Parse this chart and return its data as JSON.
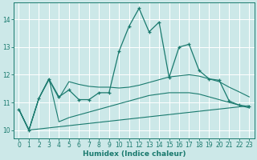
{
  "xlabel": "Humidex (Indice chaleur)",
  "bg_color": "#cce8e8",
  "grid_color": "#ffffff",
  "line_color": "#1a7a6e",
  "xlim": [
    -0.5,
    23.5
  ],
  "ylim": [
    9.7,
    14.6
  ],
  "xticks": [
    0,
    1,
    2,
    3,
    4,
    5,
    6,
    7,
    8,
    9,
    10,
    11,
    12,
    13,
    14,
    15,
    16,
    17,
    18,
    19,
    20,
    21,
    22,
    23
  ],
  "yticks": [
    10,
    11,
    12,
    13,
    14
  ],
  "curve1_x": [
    0,
    1,
    2,
    3,
    4,
    5,
    6,
    7,
    8,
    9,
    10,
    11,
    12,
    13,
    14,
    15,
    16,
    17,
    18,
    19,
    20,
    21,
    22,
    23
  ],
  "curve1_y": [
    10.75,
    10.0,
    11.15,
    11.85,
    11.2,
    11.45,
    11.1,
    11.1,
    11.35,
    11.35,
    12.85,
    13.75,
    14.4,
    13.55,
    13.9,
    11.9,
    13.0,
    13.1,
    12.15,
    11.85,
    11.8,
    11.05,
    10.9,
    10.85
  ],
  "curve2_x": [
    0,
    1,
    2,
    3,
    4,
    5,
    6,
    7,
    8,
    9,
    10,
    11,
    12,
    13,
    14,
    15,
    16,
    17,
    18,
    19,
    20,
    21,
    22,
    23
  ],
  "curve2_y": [
    10.75,
    10.0,
    11.15,
    11.85,
    10.3,
    10.45,
    10.55,
    10.65,
    10.75,
    10.85,
    10.95,
    11.05,
    11.15,
    11.25,
    11.3,
    11.35,
    11.35,
    11.35,
    11.3,
    11.2,
    11.1,
    11.0,
    10.9,
    10.8
  ],
  "curve3_x": [
    0,
    1,
    2,
    3,
    4,
    5,
    6,
    7,
    8,
    9,
    10,
    11,
    12,
    13,
    14,
    15,
    16,
    17,
    18,
    19,
    20,
    21,
    22,
    23
  ],
  "curve3_y": [
    10.75,
    10.0,
    11.15,
    11.82,
    11.15,
    11.75,
    11.65,
    11.58,
    11.55,
    11.55,
    11.52,
    11.55,
    11.62,
    11.72,
    11.82,
    11.92,
    11.96,
    12.0,
    11.95,
    11.85,
    11.75,
    11.55,
    11.38,
    11.2
  ],
  "curve4_x": [
    0,
    1,
    23
  ],
  "curve4_y": [
    10.75,
    10.0,
    10.88
  ]
}
